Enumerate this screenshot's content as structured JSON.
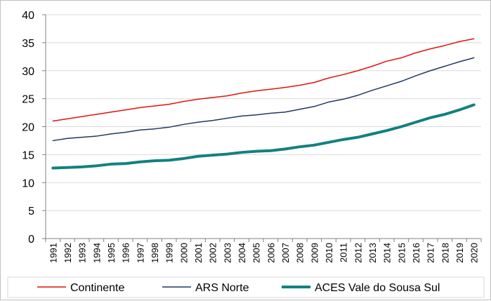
{
  "chart_data": {
    "type": "line",
    "title": "",
    "xlabel": "",
    "ylabel": "",
    "ylim": [
      0,
      40
    ],
    "yticks": [
      0,
      5,
      10,
      15,
      20,
      25,
      30,
      35,
      40
    ],
    "grid": "horizontal",
    "legend_position": "bottom",
    "x": [
      "1991",
      "1992",
      "1993",
      "1994",
      "1995",
      "1996",
      "1997",
      "1998",
      "1999",
      "2000",
      "2001",
      "2002",
      "2003",
      "2004",
      "2005",
      "2006",
      "2007",
      "2008",
      "2009",
      "2010",
      "2011",
      "2012",
      "2013",
      "2014",
      "2015",
      "2016",
      "2017",
      "2018",
      "2019",
      "2020"
    ],
    "series": [
      {
        "name": "Continente",
        "color": "#e3120b",
        "line_width": 1.5,
        "values": [
          21.0,
          21.4,
          21.8,
          22.2,
          22.6,
          23.0,
          23.4,
          23.7,
          24.0,
          24.5,
          24.9,
          25.2,
          25.5,
          26.0,
          26.4,
          26.7,
          27.0,
          27.4,
          27.9,
          28.7,
          29.3,
          30.0,
          30.8,
          31.7,
          32.3,
          33.2,
          33.9,
          34.5,
          35.2,
          35.7
        ]
      },
      {
        "name": "ARS Norte",
        "color": "#1f3864",
        "line_width": 1.5,
        "values": [
          17.5,
          17.9,
          18.1,
          18.3,
          18.7,
          19.0,
          19.4,
          19.6,
          19.9,
          20.4,
          20.8,
          21.1,
          21.5,
          21.9,
          22.1,
          22.4,
          22.6,
          23.1,
          23.6,
          24.4,
          24.9,
          25.6,
          26.5,
          27.3,
          28.1,
          29.1,
          30.0,
          30.8,
          31.6,
          32.3
        ]
      },
      {
        "name": "ACES Vale do Sousa Sul",
        "color": "#138080",
        "line_width": 4,
        "values": [
          12.6,
          12.7,
          12.8,
          13.0,
          13.3,
          13.4,
          13.7,
          13.9,
          14.0,
          14.3,
          14.7,
          14.9,
          15.1,
          15.4,
          15.6,
          15.7,
          16.0,
          16.4,
          16.7,
          17.2,
          17.7,
          18.1,
          18.7,
          19.3,
          20.0,
          20.8,
          21.6,
          22.2,
          23.0,
          23.9
        ]
      }
    ]
  }
}
